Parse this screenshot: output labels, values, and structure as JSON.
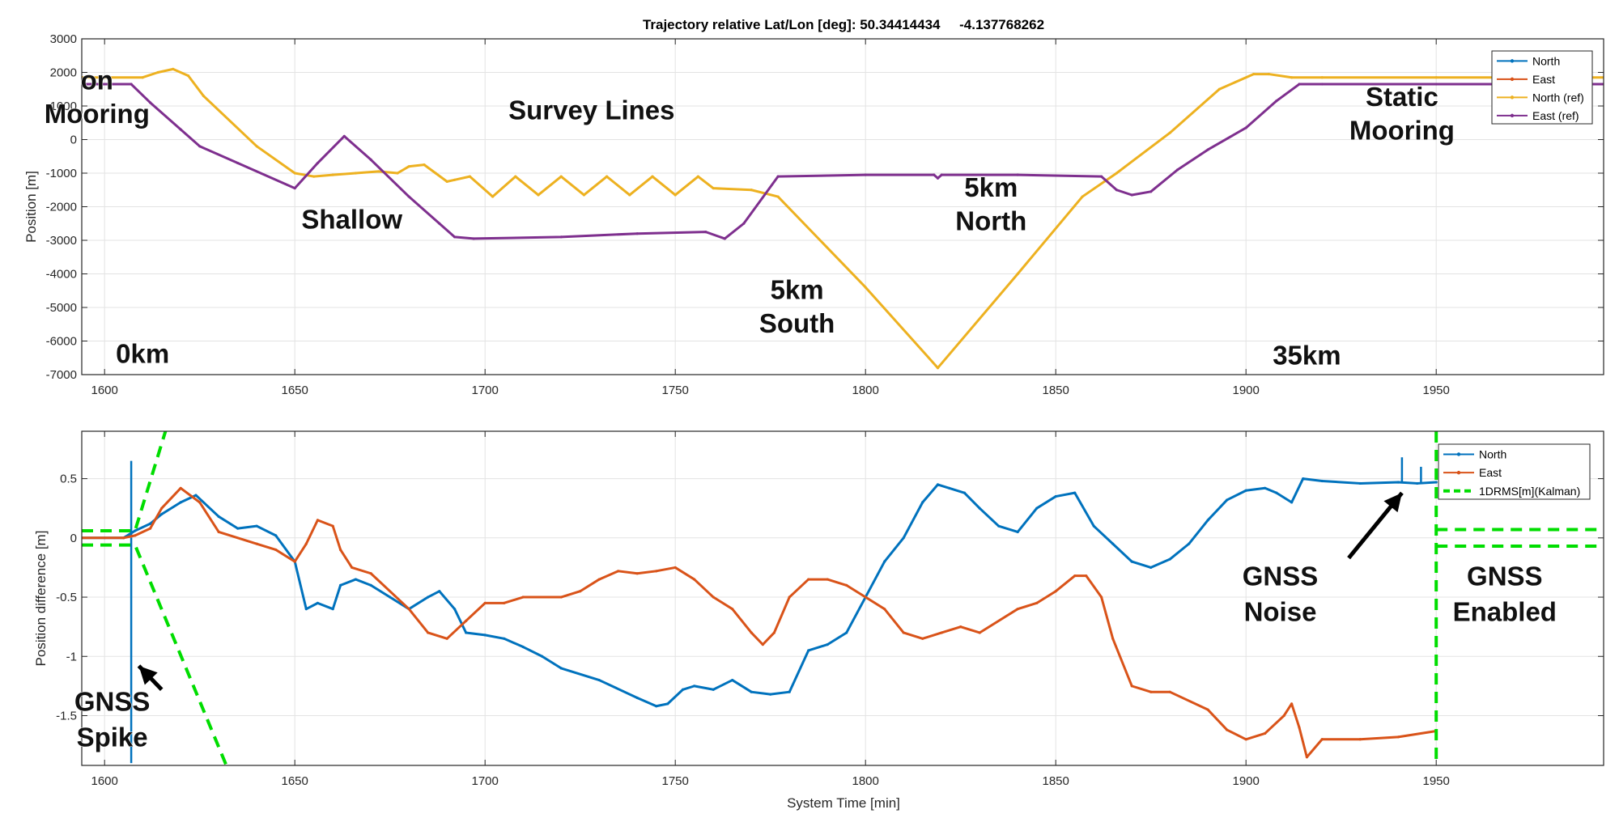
{
  "figure": {
    "title": "Trajectory relative Lat/Lon [deg]: 50.34414434     -4.137768262",
    "xlabel": "System Time [min]"
  },
  "chart_data": [
    {
      "type": "line",
      "title": "Trajectory relative Lat/Lon [deg]: 50.34414434     -4.137768262",
      "xlabel": "",
      "ylabel": "Position [m]",
      "xlim": [
        1594,
        1994
      ],
      "ylim": [
        -7000,
        3000
      ],
      "x_ticks": [
        1600,
        1650,
        1700,
        1750,
        1800,
        1850,
        1900,
        1950
      ],
      "y_ticks": [
        3000,
        2000,
        1000,
        0,
        -1000,
        -2000,
        -3000,
        -4000,
        -5000,
        -6000,
        -7000
      ],
      "grid": true,
      "legend_position": "top-right",
      "series": [
        {
          "name": "North",
          "color": "#0072BD",
          "marker": "dot",
          "x": [],
          "y": []
        },
        {
          "name": "East",
          "color": "#D95319",
          "marker": "dot",
          "x": [],
          "y": []
        },
        {
          "name": "North (ref)",
          "color": "#EDB120",
          "marker": "dot",
          "x": [
            1594,
            1610,
            1614,
            1618,
            1622,
            1626,
            1640,
            1650,
            1655,
            1660,
            1666,
            1672,
            1677,
            1680,
            1684,
            1687,
            1690,
            1692,
            1696,
            1702,
            1708,
            1714,
            1720,
            1726,
            1732,
            1738,
            1744,
            1750,
            1756,
            1760,
            1770,
            1777,
            1800,
            1819,
            1840,
            1857,
            1866,
            1880,
            1893,
            1902,
            1906,
            1912,
            1920,
            1950,
            1994
          ],
          "y": [
            1850,
            1850,
            2000,
            2100,
            1900,
            1300,
            -200,
            -1000,
            -1100,
            -1050,
            -1000,
            -950,
            -1000,
            -800,
            -750,
            -1000,
            -1250,
            -1200,
            -1100,
            -1700,
            -1100,
            -1650,
            -1100,
            -1650,
            -1100,
            -1650,
            -1100,
            -1650,
            -1100,
            -1450,
            -1500,
            -1700,
            -4400,
            -6800,
            -4000,
            -1700,
            -1000,
            200,
            1500,
            1950,
            1950,
            1850,
            1850,
            1850,
            1850
          ]
        },
        {
          "name": "East (ref)",
          "color": "#7E2F8E",
          "marker": "dot",
          "x": [
            1594,
            1607,
            1612,
            1620,
            1625,
            1635,
            1650,
            1656,
            1663,
            1670,
            1680,
            1688,
            1692,
            1697,
            1720,
            1740,
            1758,
            1763,
            1768,
            1777,
            1800,
            1818,
            1819,
            1820,
            1840,
            1862,
            1866,
            1870,
            1875,
            1882,
            1890,
            1900,
            1908,
            1914,
            1920,
            1950,
            1994
          ],
          "y": [
            1650,
            1650,
            1100,
            300,
            -200,
            -700,
            -1450,
            -700,
            100,
            -600,
            -1700,
            -2500,
            -2900,
            -2950,
            -2900,
            -2800,
            -2750,
            -2950,
            -2500,
            -1100,
            -1050,
            -1050,
            -1150,
            -1050,
            -1050,
            -1100,
            -1500,
            -1650,
            -1550,
            -900,
            -300,
            350,
            1150,
            1650,
            1650,
            1650,
            1650
          ]
        }
      ],
      "annotations": [
        {
          "text": "on",
          "x": 1598,
          "y": 1500
        },
        {
          "text": "Mooring",
          "x": 1598,
          "y": 500
        },
        {
          "text": "Survey Lines",
          "x": 1728,
          "y": 600
        },
        {
          "text": "Shallow",
          "x": 1665,
          "y": -2650
        },
        {
          "text": "5km",
          "x": 1782,
          "y": -4750
        },
        {
          "text": "South",
          "x": 1782,
          "y": -5750
        },
        {
          "text": "5km",
          "x": 1833,
          "y": -1700
        },
        {
          "text": "North",
          "x": 1833,
          "y": -2700
        },
        {
          "text": "Static",
          "x": 1941,
          "y": 1000
        },
        {
          "text": "Mooring",
          "x": 1941,
          "y": 0
        },
        {
          "text": "0km",
          "x": 1610,
          "y": -6650
        },
        {
          "text": "35km",
          "x": 1916,
          "y": -6700
        }
      ]
    },
    {
      "type": "line",
      "title": "",
      "xlabel": "System Time [min]",
      "ylabel": "Position difference [m]",
      "xlim": [
        1594,
        1994
      ],
      "ylim": [
        -1.92,
        0.9
      ],
      "x_ticks": [
        1600,
        1650,
        1700,
        1750,
        1800,
        1850,
        1900,
        1950
      ],
      "y_ticks": [
        0.5,
        0,
        -0.5,
        -1,
        -1.5
      ],
      "y_tick_labels": [
        "0.5",
        "0",
        "-0.5",
        "-1",
        "-1.5"
      ],
      "grid": true,
      "legend_position": "top-right",
      "series": [
        {
          "name": "North",
          "color": "#0072BD",
          "marker": "dot",
          "x": [
            1594,
            1600,
            1605,
            1607,
            1608,
            1612,
            1615,
            1620,
            1624,
            1630,
            1635,
            1640,
            1645,
            1650,
            1653,
            1656,
            1660,
            1662,
            1666,
            1670,
            1675,
            1680,
            1685,
            1688,
            1692,
            1695,
            1700,
            1705,
            1710,
            1715,
            1720,
            1730,
            1740,
            1745,
            1748,
            1752,
            1755,
            1760,
            1765,
            1770,
            1775,
            1780,
            1785,
            1790,
            1795,
            1800,
            1805,
            1810,
            1815,
            1819,
            1822,
            1826,
            1830,
            1835,
            1840,
            1845,
            1850,
            1855,
            1860,
            1865,
            1870,
            1875,
            1880,
            1885,
            1890,
            1895,
            1900,
            1905,
            1908,
            1912,
            1915,
            1920,
            1930,
            1940,
            1945,
            1950
          ],
          "y": [
            0,
            0,
            0,
            0.04,
            0.06,
            0.12,
            0.2,
            0.3,
            0.36,
            0.18,
            0.08,
            0.1,
            0.02,
            -0.2,
            -0.6,
            -0.55,
            -0.6,
            -0.4,
            -0.35,
            -0.4,
            -0.5,
            -0.6,
            -0.5,
            -0.45,
            -0.6,
            -0.8,
            -0.82,
            -0.85,
            -0.92,
            -1.0,
            -1.1,
            -1.2,
            -1.35,
            -1.42,
            -1.4,
            -1.28,
            -1.25,
            -1.28,
            -1.2,
            -1.3,
            -1.32,
            -1.3,
            -0.95,
            -0.9,
            -0.8,
            -0.5,
            -0.2,
            0.0,
            0.3,
            0.45,
            0.42,
            0.38,
            0.25,
            0.1,
            0.05,
            0.25,
            0.35,
            0.38,
            0.1,
            -0.05,
            -0.2,
            -0.25,
            -0.18,
            -0.05,
            0.15,
            0.32,
            0.4,
            0.42,
            0.38,
            0.3,
            0.5,
            0.48,
            0.46,
            0.47,
            0.46,
            0.47
          ],
          "spikes": [
            [
              1607,
              0.65
            ],
            [
              1607,
              -1.9
            ],
            [
              1941,
              0.68
            ],
            [
              1946,
              0.6
            ]
          ]
        },
        {
          "name": "East",
          "color": "#D95319",
          "marker": "dot",
          "x": [
            1594,
            1605,
            1608,
            1612,
            1615,
            1620,
            1625,
            1630,
            1640,
            1645,
            1650,
            1653,
            1656,
            1660,
            1662,
            1665,
            1670,
            1680,
            1685,
            1690,
            1695,
            1700,
            1705,
            1710,
            1720,
            1725,
            1730,
            1735,
            1740,
            1745,
            1750,
            1755,
            1760,
            1765,
            1770,
            1773,
            1776,
            1780,
            1785,
            1790,
            1795,
            1800,
            1805,
            1810,
            1815,
            1820,
            1825,
            1830,
            1840,
            1845,
            1850,
            1855,
            1858,
            1862,
            1865,
            1870,
            1875,
            1880,
            1890,
            1895,
            1900,
            1905,
            1910,
            1912,
            1914,
            1916,
            1920,
            1930,
            1940,
            1950
          ],
          "y": [
            0,
            0,
            0.02,
            0.08,
            0.25,
            0.42,
            0.3,
            0.05,
            -0.05,
            -0.1,
            -0.2,
            -0.05,
            0.15,
            0.1,
            -0.1,
            -0.25,
            -0.3,
            -0.6,
            -0.8,
            -0.85,
            -0.7,
            -0.55,
            -0.55,
            -0.5,
            -0.5,
            -0.45,
            -0.35,
            -0.28,
            -0.3,
            -0.28,
            -0.25,
            -0.35,
            -0.5,
            -0.6,
            -0.8,
            -0.9,
            -0.8,
            -0.5,
            -0.35,
            -0.35,
            -0.4,
            -0.5,
            -0.6,
            -0.8,
            -0.85,
            -0.8,
            -0.75,
            -0.8,
            -0.6,
            -0.55,
            -0.45,
            -0.32,
            -0.32,
            -0.5,
            -0.85,
            -1.25,
            -1.3,
            -1.3,
            -1.45,
            -1.62,
            -1.7,
            -1.65,
            -1.5,
            -1.4,
            -1.6,
            -1.85,
            -1.7,
            -1.7,
            -1.68,
            -1.63
          ]
        },
        {
          "name": "1DRMS[m](Kalman)",
          "color": "#00DD00",
          "marker": "none",
          "dashed": true,
          "segments": [
            {
              "x": [
                1594,
                1608,
                1616
              ],
              "y": [
                0.06,
                0.06,
                0.9
              ]
            },
            {
              "x": [
                1594,
                1608,
                1632
              ],
              "y": [
                -0.06,
                -0.06,
                -1.92
              ]
            },
            {
              "x": [
                1950,
                1994
              ],
              "y": [
                0.07,
                0.07
              ]
            },
            {
              "x": [
                1950,
                1994
              ],
              "y": [
                -0.07,
                -0.07
              ]
            },
            {
              "x": [
                1950,
                1950
              ],
              "y": [
                0.9,
                -1.92
              ]
            }
          ]
        }
      ],
      "annotations": [
        {
          "text": "GNSS",
          "x": 1602,
          "y": -1.46
        },
        {
          "text": "Spike",
          "x": 1602,
          "y": -1.76
        },
        {
          "text": "GNSS",
          "x": 1909,
          "y": -0.4
        },
        {
          "text": "Noise",
          "x": 1909,
          "y": -0.7
        },
        {
          "text": "GNSS",
          "x": 1968,
          "y": -0.4
        },
        {
          "text": "Enabled",
          "x": 1968,
          "y": -0.7
        }
      ],
      "arrows": [
        {
          "from": [
            1615,
            -1.28
          ],
          "to": [
            1609,
            -1.08
          ]
        },
        {
          "from": [
            1927,
            -0.17
          ],
          "to": [
            1941,
            0.38
          ]
        }
      ]
    }
  ]
}
